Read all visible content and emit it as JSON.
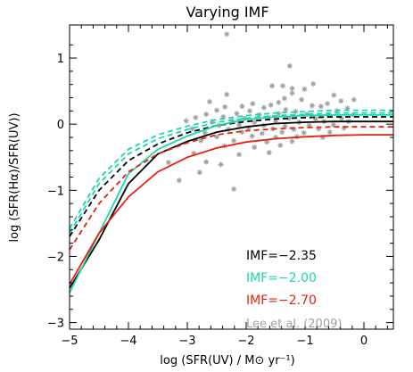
{
  "chart_data": {
    "type": "line",
    "title": "Varying IMF",
    "xlabel": "log (SFR(UV) / M⊙ yr⁻¹)",
    "ylabel": "log (SFR(Hα)/SFR(UV))",
    "xlim": [
      -5,
      0.5
    ],
    "ylim": [
      -3.1,
      1.5
    ],
    "xticks": [
      -5,
      -4,
      -3,
      -2,
      -1,
      0
    ],
    "yticks": [
      -3,
      -2,
      -1,
      0,
      1
    ],
    "grid": false,
    "legend_position": "bottom-right",
    "series": [
      {
        "name": "IMF=−2.35",
        "color": "#000000",
        "dash": false,
        "x": [
          -5.0,
          -4.5,
          -4.0,
          -3.5,
          -3.0,
          -2.5,
          -2.0,
          -1.5,
          -1.0,
          -0.5,
          0.0,
          0.5
        ],
        "y": [
          -2.48,
          -1.75,
          -0.9,
          -0.45,
          -0.26,
          -0.12,
          -0.04,
          0.01,
          0.03,
          0.04,
          0.04,
          0.04
        ]
      },
      {
        "name": "",
        "color": "#000000",
        "dash": true,
        "x": [
          -5.0,
          -4.5,
          -4.0,
          -3.5,
          -3.0,
          -2.5,
          -2.0,
          -1.5,
          -1.0,
          -0.5,
          0.0,
          0.5
        ],
        "y": [
          -1.7,
          -1.0,
          -0.55,
          -0.3,
          -0.13,
          -0.02,
          0.04,
          0.08,
          0.1,
          0.11,
          0.11,
          0.11
        ]
      },
      {
        "name": "IMF=−2.00",
        "color": "#1ad7b0",
        "dash": false,
        "x": [
          -5.0,
          -4.5,
          -4.0,
          -3.5,
          -3.0,
          -2.5,
          -2.0,
          -1.5,
          -1.0,
          -0.5,
          0.0,
          0.5
        ],
        "y": [
          -2.55,
          -1.65,
          -0.75,
          -0.38,
          -0.18,
          -0.02,
          0.07,
          0.11,
          0.13,
          0.14,
          0.14,
          0.14
        ]
      },
      {
        "name": "",
        "color": "#1ad7b0",
        "dash": true,
        "x": [
          -5.0,
          -4.5,
          -4.0,
          -3.5,
          -3.0,
          -2.5,
          -2.0,
          -1.5,
          -1.0,
          -0.5,
          0.0,
          0.5
        ],
        "y": [
          -1.58,
          -0.82,
          -0.38,
          -0.16,
          -0.03,
          0.07,
          0.13,
          0.17,
          0.19,
          0.21,
          0.21,
          0.21
        ]
      },
      {
        "name": "",
        "color": "#1ad7b0",
        "dash": true,
        "x": [
          -5.0,
          -4.5,
          -4.0,
          -3.5,
          -3.0,
          -2.5,
          -2.0,
          -1.5,
          -1.0,
          -0.5,
          0.0,
          0.5
        ],
        "y": [
          -1.65,
          -0.9,
          -0.45,
          -0.22,
          -0.08,
          0.03,
          0.09,
          0.13,
          0.15,
          0.17,
          0.17,
          0.17
        ]
      },
      {
        "name": "IMF=−2.70",
        "color": "#e8200e",
        "dash": false,
        "x": [
          -5.0,
          -4.5,
          -4.0,
          -3.5,
          -3.0,
          -2.5,
          -2.0,
          -1.5,
          -1.0,
          -0.5,
          0.0,
          0.5
        ],
        "y": [
          -2.42,
          -1.65,
          -1.1,
          -0.72,
          -0.5,
          -0.36,
          -0.27,
          -0.22,
          -0.19,
          -0.17,
          -0.16,
          -0.16
        ]
      },
      {
        "name": "",
        "color": "#e8200e",
        "dash": true,
        "x": [
          -5.0,
          -4.5,
          -4.0,
          -3.5,
          -3.0,
          -2.5,
          -2.0,
          -1.5,
          -1.0,
          -0.5,
          0.0,
          0.5
        ],
        "y": [
          -1.9,
          -1.2,
          -0.72,
          -0.45,
          -0.28,
          -0.16,
          -0.1,
          -0.07,
          -0.05,
          -0.04,
          -0.04,
          -0.04
        ]
      }
    ],
    "scatter": {
      "name": "Lee et al. (2009)",
      "color": "#a0a0a0",
      "points": [
        [
          -2.33,
          1.36
        ],
        [
          -1.26,
          0.88
        ],
        [
          -0.86,
          0.61
        ],
        [
          -1.38,
          0.58
        ],
        [
          -1.56,
          0.58
        ],
        [
          -1.22,
          0.54
        ],
        [
          -1.01,
          0.53
        ],
        [
          -1.22,
          0.47
        ],
        [
          -0.51,
          0.44
        ],
        [
          -2.33,
          0.45
        ],
        [
          -1.35,
          0.39
        ],
        [
          -1.06,
          0.37
        ],
        [
          -0.39,
          0.35
        ],
        [
          -2.62,
          0.34
        ],
        [
          -1.45,
          0.33
        ],
        [
          -0.62,
          0.31
        ],
        [
          -0.17,
          0.37
        ],
        [
          -1.89,
          0.31
        ],
        [
          -1.58,
          0.29
        ],
        [
          -0.73,
          0.27
        ],
        [
          -2.36,
          0.26
        ],
        [
          -2.07,
          0.27
        ],
        [
          -1.7,
          0.25
        ],
        [
          -0.88,
          0.28
        ],
        [
          -0.28,
          0.24
        ],
        [
          -1.33,
          0.22
        ],
        [
          -2.5,
          0.21
        ],
        [
          -1.94,
          0.2
        ],
        [
          -1.16,
          0.19
        ],
        [
          -0.46,
          0.2
        ],
        [
          -2.68,
          0.15
        ],
        [
          -2.16,
          0.16
        ],
        [
          -1.78,
          0.14
        ],
        [
          -1.45,
          0.16
        ],
        [
          -0.97,
          0.15
        ],
        [
          -0.6,
          0.14
        ],
        [
          -0.18,
          0.14
        ],
        [
          -2.86,
          0.1
        ],
        [
          -2.39,
          0.11
        ],
        [
          -2.03,
          0.09
        ],
        [
          -1.62,
          0.1
        ],
        [
          -1.27,
          0.09
        ],
        [
          -0.82,
          0.08
        ],
        [
          -0.38,
          0.09
        ],
        [
          -3.02,
          0.05
        ],
        [
          -2.58,
          0.04
        ],
        [
          -2.24,
          0.05
        ],
        [
          -1.86,
          0.03
        ],
        [
          -1.5,
          0.04
        ],
        [
          -1.1,
          0.03
        ],
        [
          -0.68,
          0.04
        ],
        [
          -0.26,
          0.04
        ],
        [
          -2.46,
          -0.02
        ],
        [
          -2.12,
          -0.01
        ],
        [
          -1.7,
          -0.02
        ],
        [
          -1.34,
          -0.03
        ],
        [
          -0.93,
          -0.02
        ],
        [
          -0.52,
          -0.01
        ],
        [
          -2.92,
          -0.07
        ],
        [
          -2.3,
          -0.08
        ],
        [
          -1.96,
          -0.06
        ],
        [
          -1.55,
          -0.07
        ],
        [
          -1.19,
          -0.08
        ],
        [
          -0.77,
          -0.07
        ],
        [
          -0.34,
          -0.06
        ],
        [
          -2.7,
          -0.13
        ],
        [
          -2.07,
          -0.12
        ],
        [
          -1.73,
          -0.14
        ],
        [
          -1.39,
          -0.12
        ],
        [
          -1.02,
          -0.13
        ],
        [
          -0.58,
          -0.12
        ],
        [
          -2.5,
          -0.19
        ],
        [
          -1.9,
          -0.18
        ],
        [
          -1.5,
          -0.2
        ],
        [
          -1.14,
          -0.19
        ],
        [
          -0.7,
          -0.2
        ],
        [
          -2.77,
          -0.25
        ],
        [
          -2.21,
          -0.25
        ],
        [
          -1.65,
          -0.27
        ],
        [
          -1.22,
          -0.26
        ],
        [
          -2.37,
          -0.33
        ],
        [
          -1.86,
          -0.35
        ],
        [
          -1.42,
          -0.32
        ],
        [
          -2.89,
          -0.44
        ],
        [
          -2.12,
          -0.46
        ],
        [
          -1.61,
          -0.43
        ],
        [
          -3.32,
          -0.58
        ],
        [
          -2.68,
          -0.57
        ],
        [
          -2.43,
          -0.61
        ],
        [
          -2.79,
          -0.73
        ],
        [
          -3.14,
          -0.85
        ],
        [
          -2.21,
          -0.98
        ]
      ]
    },
    "annotation": "Lee et al. (2009)"
  }
}
